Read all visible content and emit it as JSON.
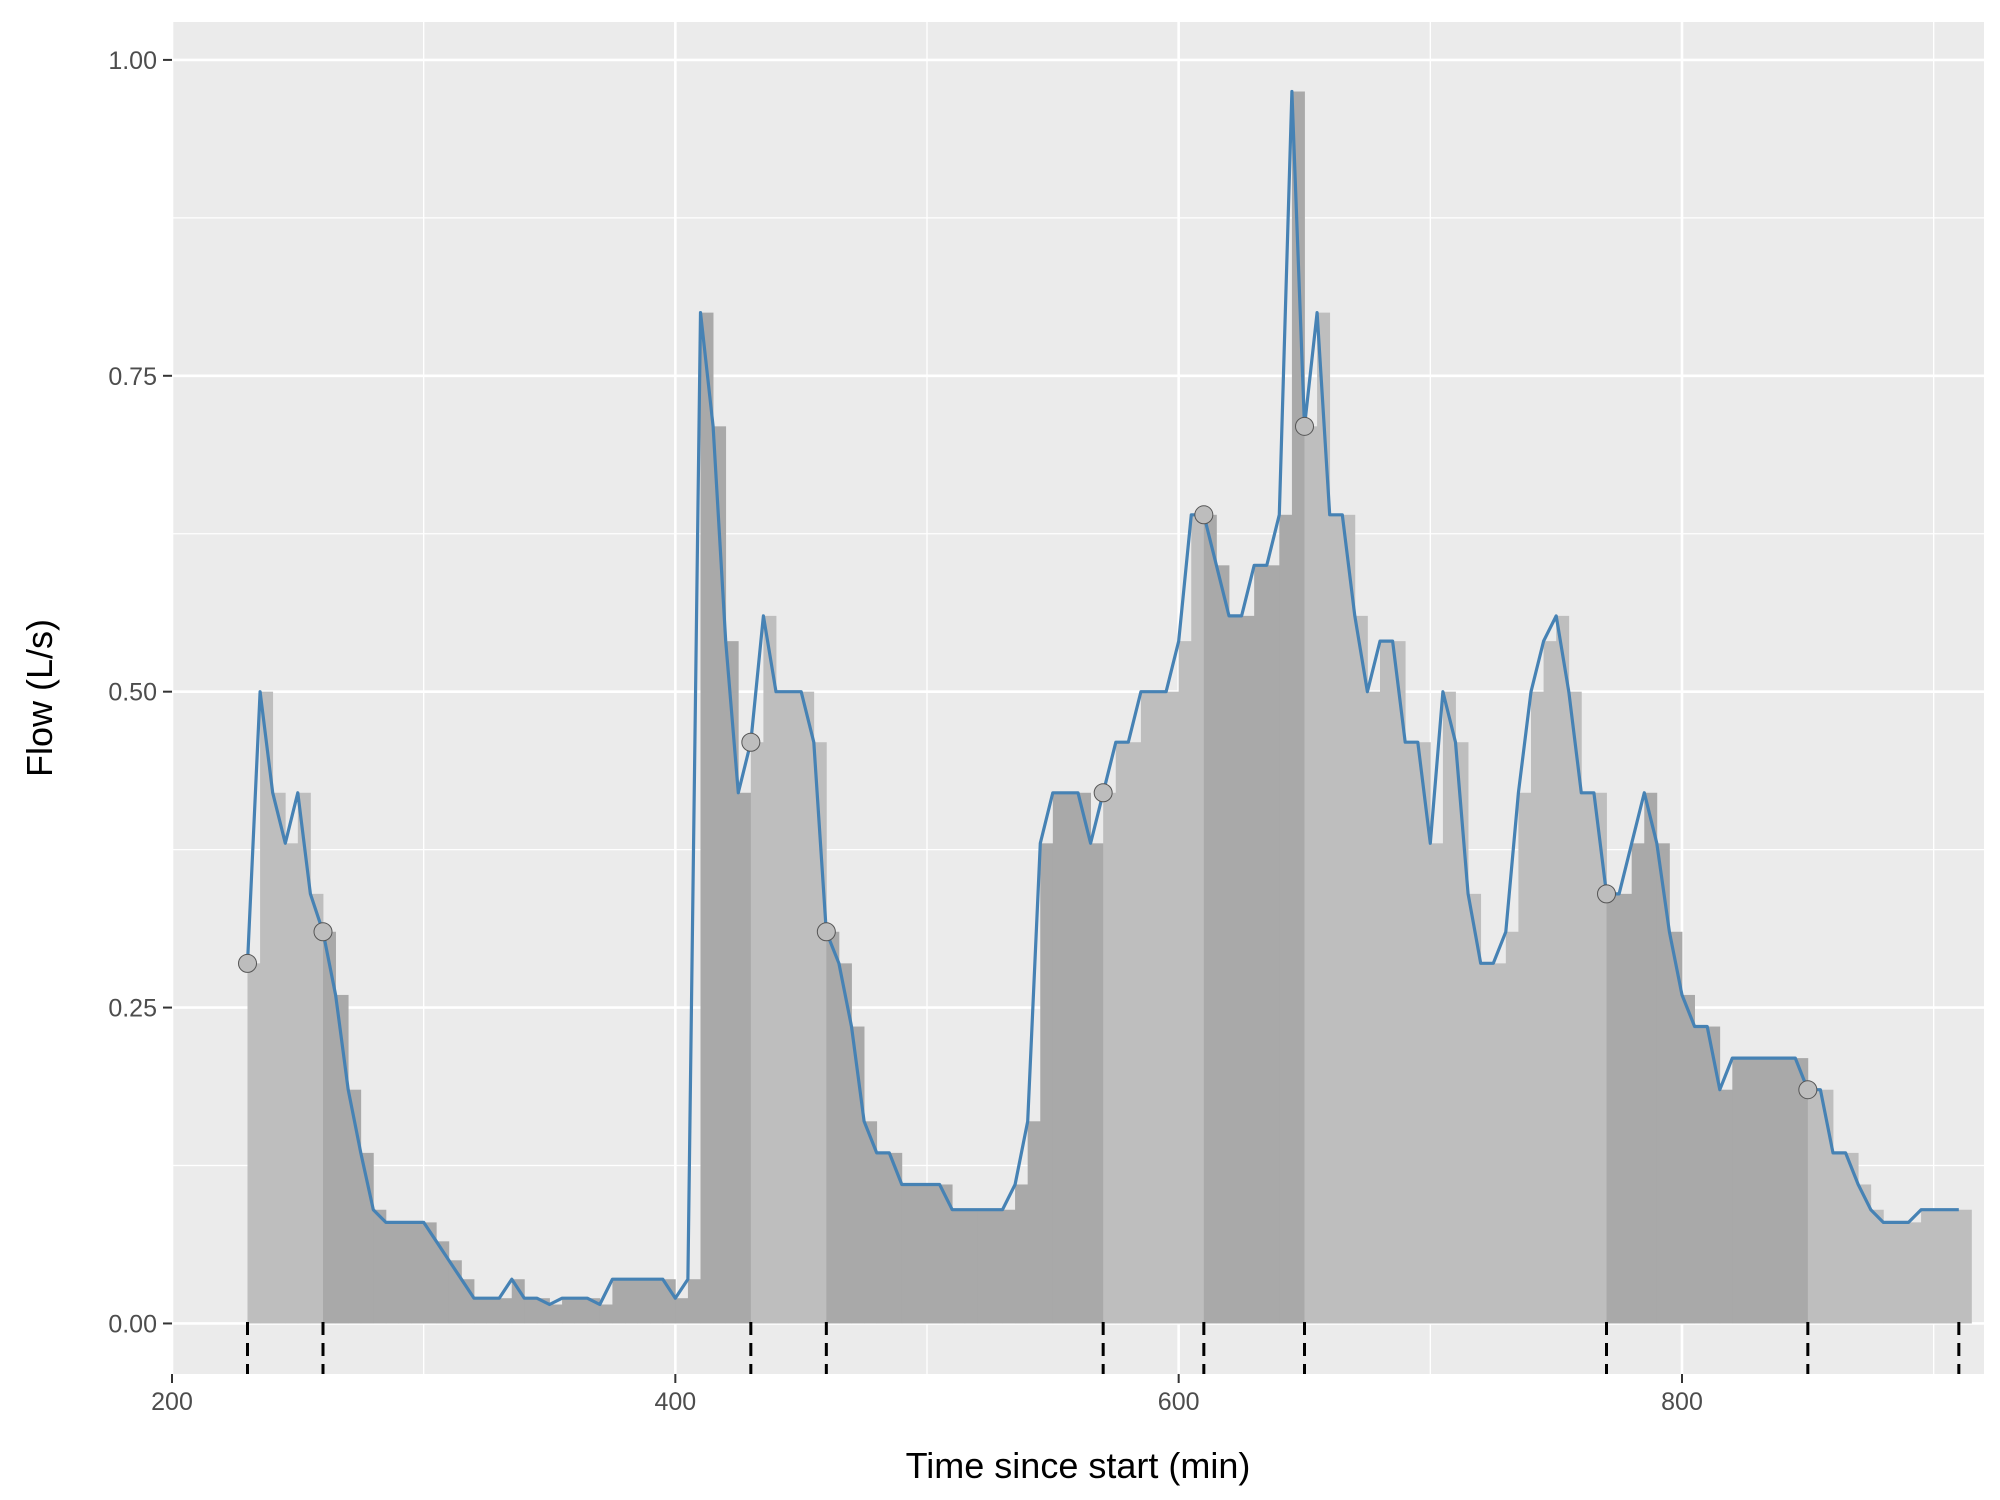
{
  "chart_data": {
    "type": "bar+line",
    "xlabel": "Time since start (min)",
    "ylabel": "Flow (L/s)",
    "xlim": [
      200,
      920
    ],
    "ylim": [
      -0.04,
      1.03
    ],
    "x_ticks": [
      200,
      400,
      600,
      800
    ],
    "y_ticks": [
      0.0,
      0.25,
      0.5,
      0.75,
      1.0
    ],
    "x_tick_labels": [
      "200",
      "400",
      "600",
      "800"
    ],
    "y_tick_labels": [
      "0.00",
      "0.25",
      "0.50",
      "0.75",
      "1.00"
    ],
    "grid": true,
    "colors": {
      "panel": "#ebebeb",
      "grid": "#ffffff",
      "line": "#4682b4",
      "bar_light": "#bebebe",
      "bar_dark": "#a9a9a9",
      "marker_fill": "#bdbdbd",
      "marker_stroke": "#555555",
      "divider": "#000000"
    },
    "bar_width": 5,
    "series": [
      {
        "x": [
          230,
          235,
          240,
          245,
          250,
          255,
          260,
          265,
          270,
          275,
          280,
          285,
          290,
          295,
          300,
          305,
          310,
          315,
          320,
          325,
          330,
          335,
          340,
          345,
          350,
          355,
          360,
          365,
          370,
          375,
          380,
          385,
          390,
          395,
          400,
          405,
          410,
          415,
          420,
          425,
          430,
          435,
          440,
          445,
          450,
          455,
          460,
          465,
          470,
          475,
          480,
          485,
          490,
          495,
          500,
          505,
          510,
          515,
          520,
          525,
          530,
          535,
          540,
          545,
          550,
          555,
          560,
          565,
          570,
          575,
          580,
          585,
          590,
          595,
          600,
          605,
          610,
          615,
          620,
          625,
          630,
          635,
          640,
          645,
          650,
          655,
          660,
          665,
          670,
          675,
          680,
          685,
          690,
          695,
          700,
          705,
          710,
          715,
          720,
          725,
          730,
          735,
          740,
          745,
          750,
          755,
          760,
          765,
          770,
          775,
          780,
          785,
          790,
          795,
          800,
          805,
          810,
          815,
          820,
          825,
          830,
          835,
          840,
          845,
          850,
          855,
          860,
          865,
          870,
          875,
          880,
          885,
          890,
          895,
          900,
          905,
          910
        ],
        "values": [
          0.285,
          0.5,
          0.42,
          0.38,
          0.42,
          0.34,
          0.31,
          0.26,
          0.185,
          0.135,
          0.09,
          0.08,
          0.08,
          0.08,
          0.08,
          0.065,
          0.05,
          0.035,
          0.02,
          0.02,
          0.02,
          0.035,
          0.02,
          0.02,
          0.015,
          0.02,
          0.02,
          0.02,
          0.015,
          0.035,
          0.035,
          0.035,
          0.035,
          0.035,
          0.02,
          0.035,
          0.8,
          0.71,
          0.54,
          0.42,
          0.46,
          0.56,
          0.5,
          0.5,
          0.5,
          0.46,
          0.31,
          0.285,
          0.235,
          0.16,
          0.135,
          0.135,
          0.11,
          0.11,
          0.11,
          0.11,
          0.09,
          0.09,
          0.09,
          0.09,
          0.09,
          0.11,
          0.16,
          0.38,
          0.42,
          0.42,
          0.42,
          0.38,
          0.42,
          0.46,
          0.46,
          0.5,
          0.5,
          0.5,
          0.54,
          0.64,
          0.64,
          0.6,
          0.56,
          0.56,
          0.6,
          0.6,
          0.64,
          0.975,
          0.71,
          0.8,
          0.64,
          0.64,
          0.56,
          0.5,
          0.54,
          0.54,
          0.46,
          0.46,
          0.38,
          0.5,
          0.46,
          0.34,
          0.285,
          0.285,
          0.31,
          0.42,
          0.5,
          0.54,
          0.56,
          0.5,
          0.42,
          0.42,
          0.34,
          0.34,
          0.38,
          0.42,
          0.38,
          0.31,
          0.26,
          0.235,
          0.235,
          0.185,
          0.21,
          0.21,
          0.21,
          0.21,
          0.21,
          0.21,
          0.185,
          0.185,
          0.135,
          0.135,
          0.11,
          0.09,
          0.08,
          0.08,
          0.08,
          0.09,
          0.09,
          0.09,
          0.09
        ]
      }
    ],
    "markers": [
      {
        "x": 230,
        "y": 0.285
      },
      {
        "x": 260,
        "y": 0.31
      },
      {
        "x": 430,
        "y": 0.46
      },
      {
        "x": 460,
        "y": 0.31
      },
      {
        "x": 570,
        "y": 0.42
      },
      {
        "x": 610,
        "y": 0.64
      },
      {
        "x": 650,
        "y": 0.71
      },
      {
        "x": 770,
        "y": 0.34
      },
      {
        "x": 850,
        "y": 0.185
      }
    ],
    "segment_dividers": [
      230,
      260,
      430,
      460,
      570,
      610,
      650,
      770,
      850,
      910
    ]
  }
}
